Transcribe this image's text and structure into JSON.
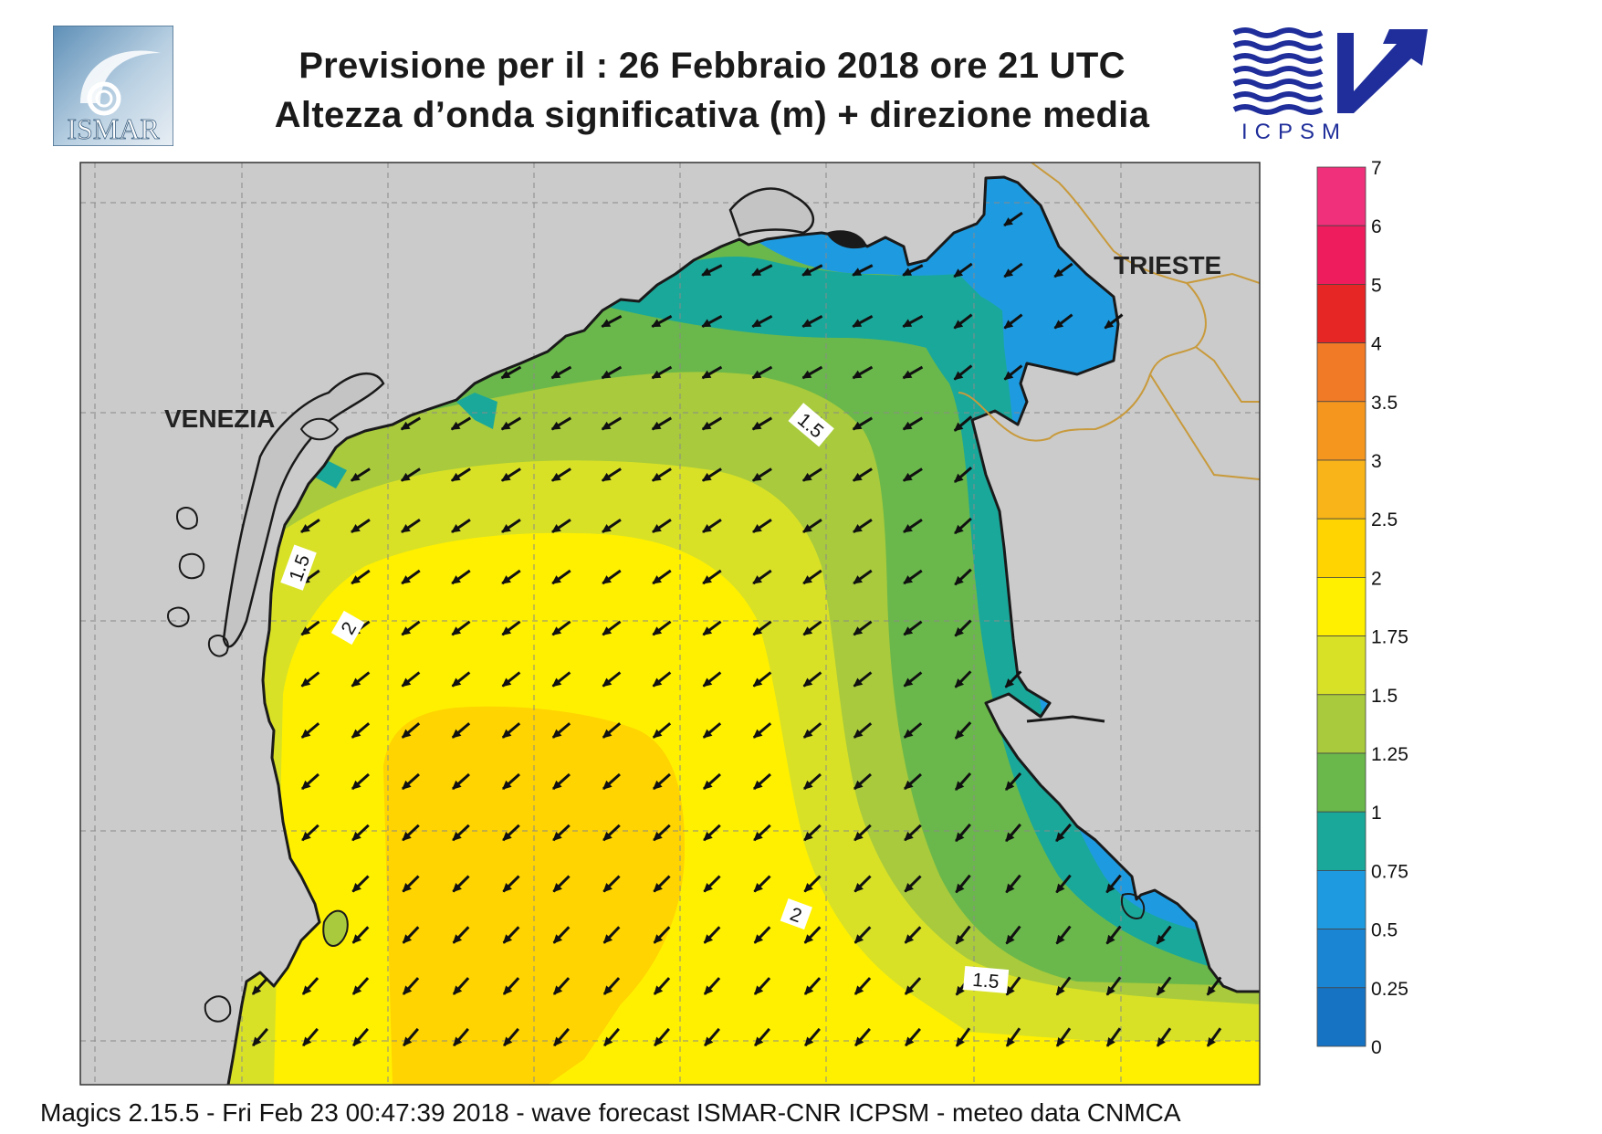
{
  "header": {
    "line1": "Previsione per il  :  26  Febbraio 2018   ore 21 UTC",
    "line2": "Altezza d’onda significativa (m) + direzione media"
  },
  "logos": {
    "left": "ISMAR",
    "right": "ICPSM"
  },
  "cities": {
    "venezia": "VENEZIA",
    "trieste": "TRIESTE"
  },
  "contour_labels": [
    "1.5",
    "1.5",
    "2",
    "2",
    "1.5"
  ],
  "colorbar": {
    "levels": [
      {
        "label": "7",
        "color": "#f0307a"
      },
      {
        "label": "6",
        "color": "#ee1c5c"
      },
      {
        "label": "5",
        "color": "#e62525"
      },
      {
        "label": "4",
        "color": "#f07a25"
      },
      {
        "label": "3.5",
        "color": "#f5971f"
      },
      {
        "label": "3",
        "color": "#f8b419"
      },
      {
        "label": "2.5",
        "color": "#ffd400"
      },
      {
        "label": "2",
        "color": "#fff000"
      },
      {
        "label": "1.75",
        "color": "#d8e126"
      },
      {
        "label": "1.5",
        "color": "#a8ca3c"
      },
      {
        "label": "1.25",
        "color": "#6ab84b"
      },
      {
        "label": "1",
        "color": "#1aa89a"
      },
      {
        "label": "0.75",
        "color": "#1e9be0"
      },
      {
        "label": "0.5",
        "color": "#1a86d3"
      },
      {
        "label": "0.25",
        "color": "#1673c3"
      },
      {
        "label": "0",
        "color": "#0f5fae"
      }
    ]
  },
  "colors": {
    "land": "#cbcbcb",
    "coast": "#1a1a1a",
    "border": "#c89a3c",
    "grid": "#8a8a8a"
  },
  "footer": "Magics 2.15.5 - Fri Feb 23 00:47:39 2018 - wave forecast  ISMAR-CNR  ICPSM - meteo data   CNMCA"
}
